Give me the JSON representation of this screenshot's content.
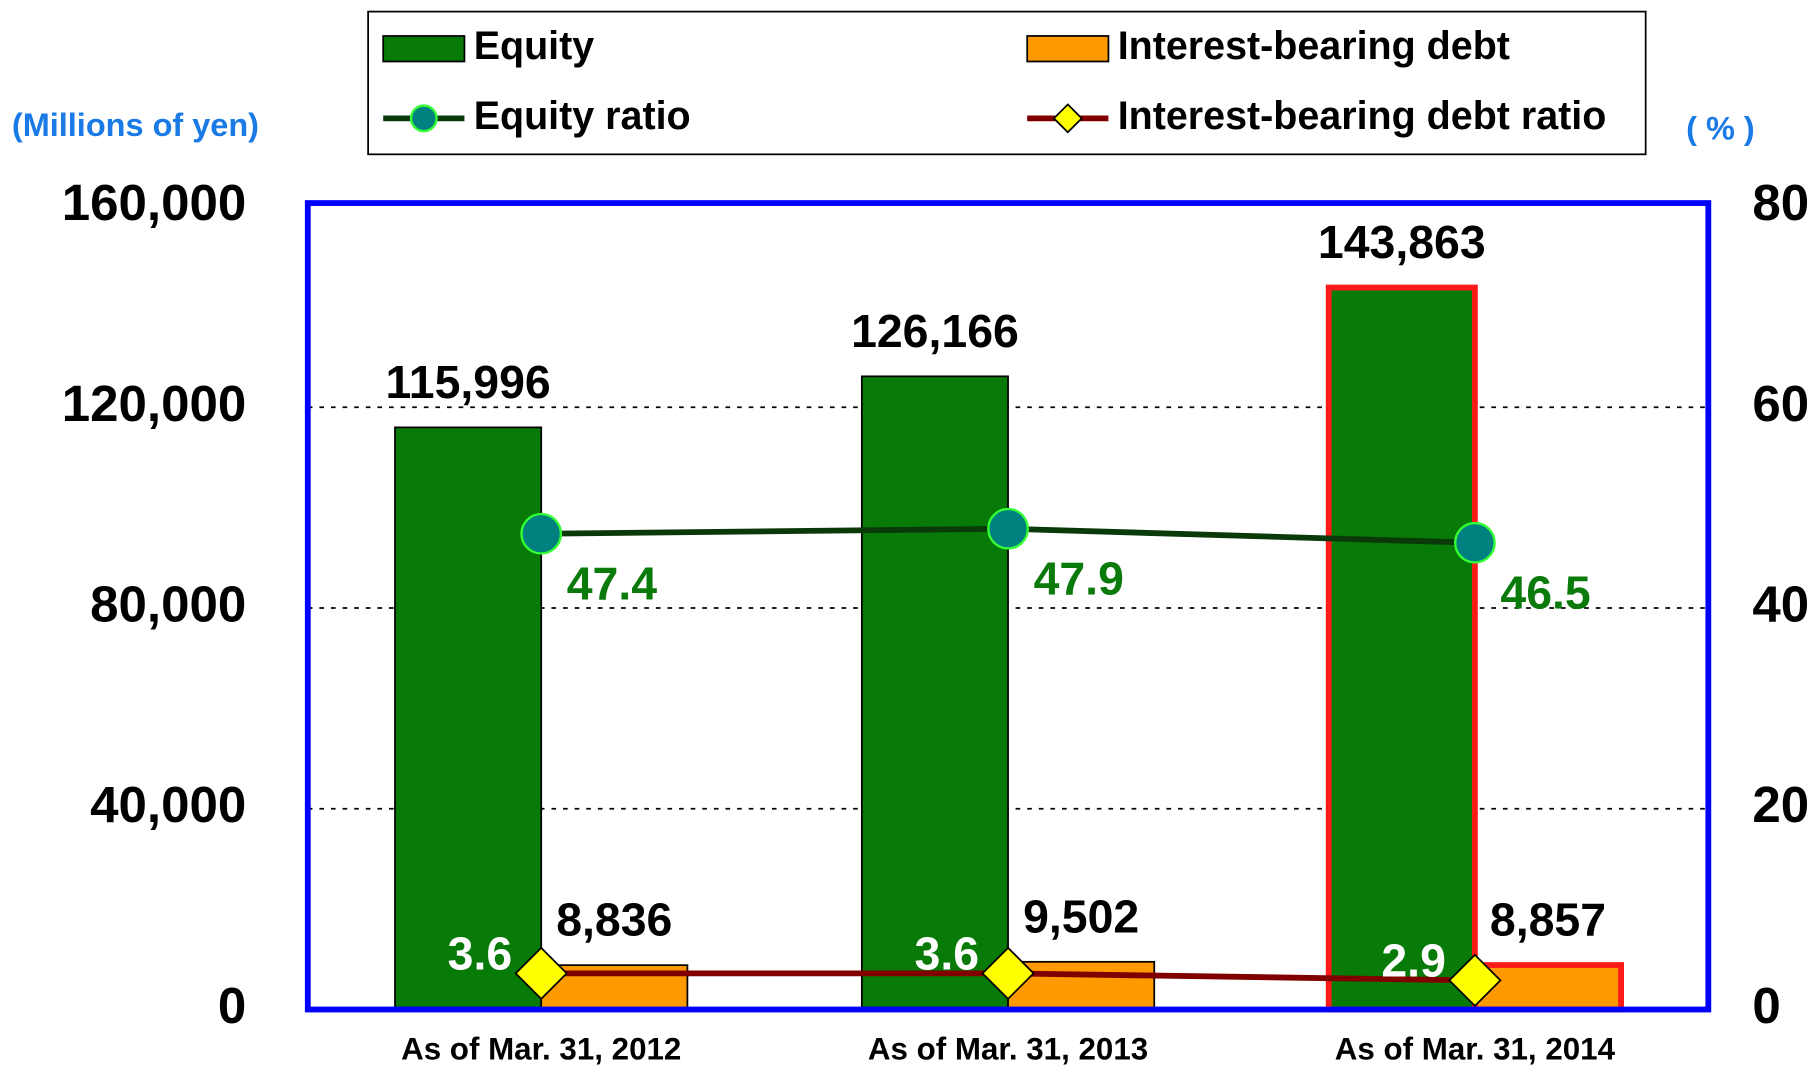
{
  "chart_data": {
    "type": "bar_line",
    "y_axis_label": "(Millions of yen)",
    "y2_axis_label": "( % )",
    "categories": [
      "As of Mar. 31, 2012",
      "As of Mar. 31, 2013",
      "As of Mar. 31, 2014"
    ],
    "ylim": [
      0,
      160000
    ],
    "yticks": [
      0,
      {
        "value": 40000,
        "label": "40,000"
      },
      {
        "value": 80000,
        "label": "80,000"
      },
      {
        "value": 120000,
        "label": "120,000"
      },
      {
        "value": 160000,
        "label": "160,000"
      }
    ],
    "y2lim": [
      0,
      80
    ],
    "y2ticks": [
      0,
      20,
      40,
      60,
      80
    ],
    "grid": true,
    "series": [
      {
        "name": "Equity",
        "type": "bar",
        "color": "#077a07",
        "edge_colors": [
          "#000000",
          "#000000",
          "#ff1a1a"
        ],
        "values": [
          115996,
          126166,
          143863
        ],
        "value_labels": [
          "115,996",
          "126,166",
          "143,863"
        ]
      },
      {
        "name": "Interest-bearing debt",
        "type": "bar",
        "color": "#ff9900",
        "edge_colors": [
          "#000000",
          "#000000",
          "#ff1a1a"
        ],
        "values": [
          8836,
          9502,
          8857
        ],
        "value_labels": [
          "8,836",
          "9,502",
          "8,857"
        ]
      },
      {
        "name": "Equity ratio",
        "type": "line",
        "axis": "y2",
        "color": "#0a3a0a",
        "marker_color": "#00807f",
        "label_color": "#0a7a0a",
        "values": [
          47.4,
          47.9,
          46.5
        ]
      },
      {
        "name": "Interest-bearing debt ratio",
        "type": "line",
        "axis": "y2",
        "color": "#800000",
        "marker_color": "#ffff00",
        "label_color": "#ffffff",
        "values": [
          3.6,
          3.6,
          2.9
        ]
      }
    ]
  }
}
